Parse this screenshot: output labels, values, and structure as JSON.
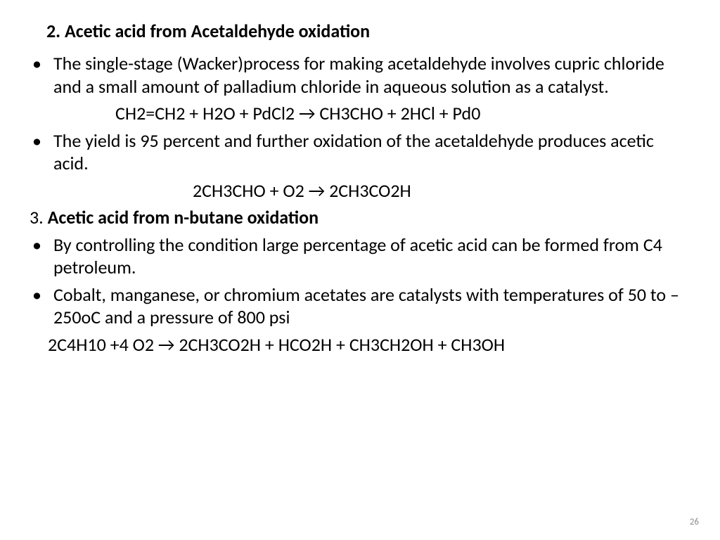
{
  "heading": "2. Acetic acid  from Acetaldehyde oxidation",
  "bullets": {
    "b1": "The single-stage (Wacker)process for making acetaldehyde involves cupric chloride and a small amount of palladium chloride in aqueous solution as a catalyst.",
    "b2": " The yield is 95 percent and further oxidation of the acetaldehyde produces acetic acid.",
    "b3": "By controlling the condition large percentage of acetic acid can  be formed from C4 petroleum.",
    "b4": "Cobalt, manganese, or chromium acetates are catalysts with temperatures of 50 to –250oC and a pressure of 800 psi"
  },
  "equations": {
    "eq1": "CH2=CH2 + H2O + PdCl2 → CH3CHO + 2HCl + Pd0",
    "eq2": "2CH3CHO + O2 → 2CH3CO2H",
    "eq3": "2C4H10 +4 O2 → 2CH3CO2H + HCO2H + CH3CH2OH + CH3OH"
  },
  "subhead": {
    "num": "3. ",
    "title": "Acetic acid  from n-butane oxidation"
  },
  "bullet_char": "•",
  "page_number": "26"
}
